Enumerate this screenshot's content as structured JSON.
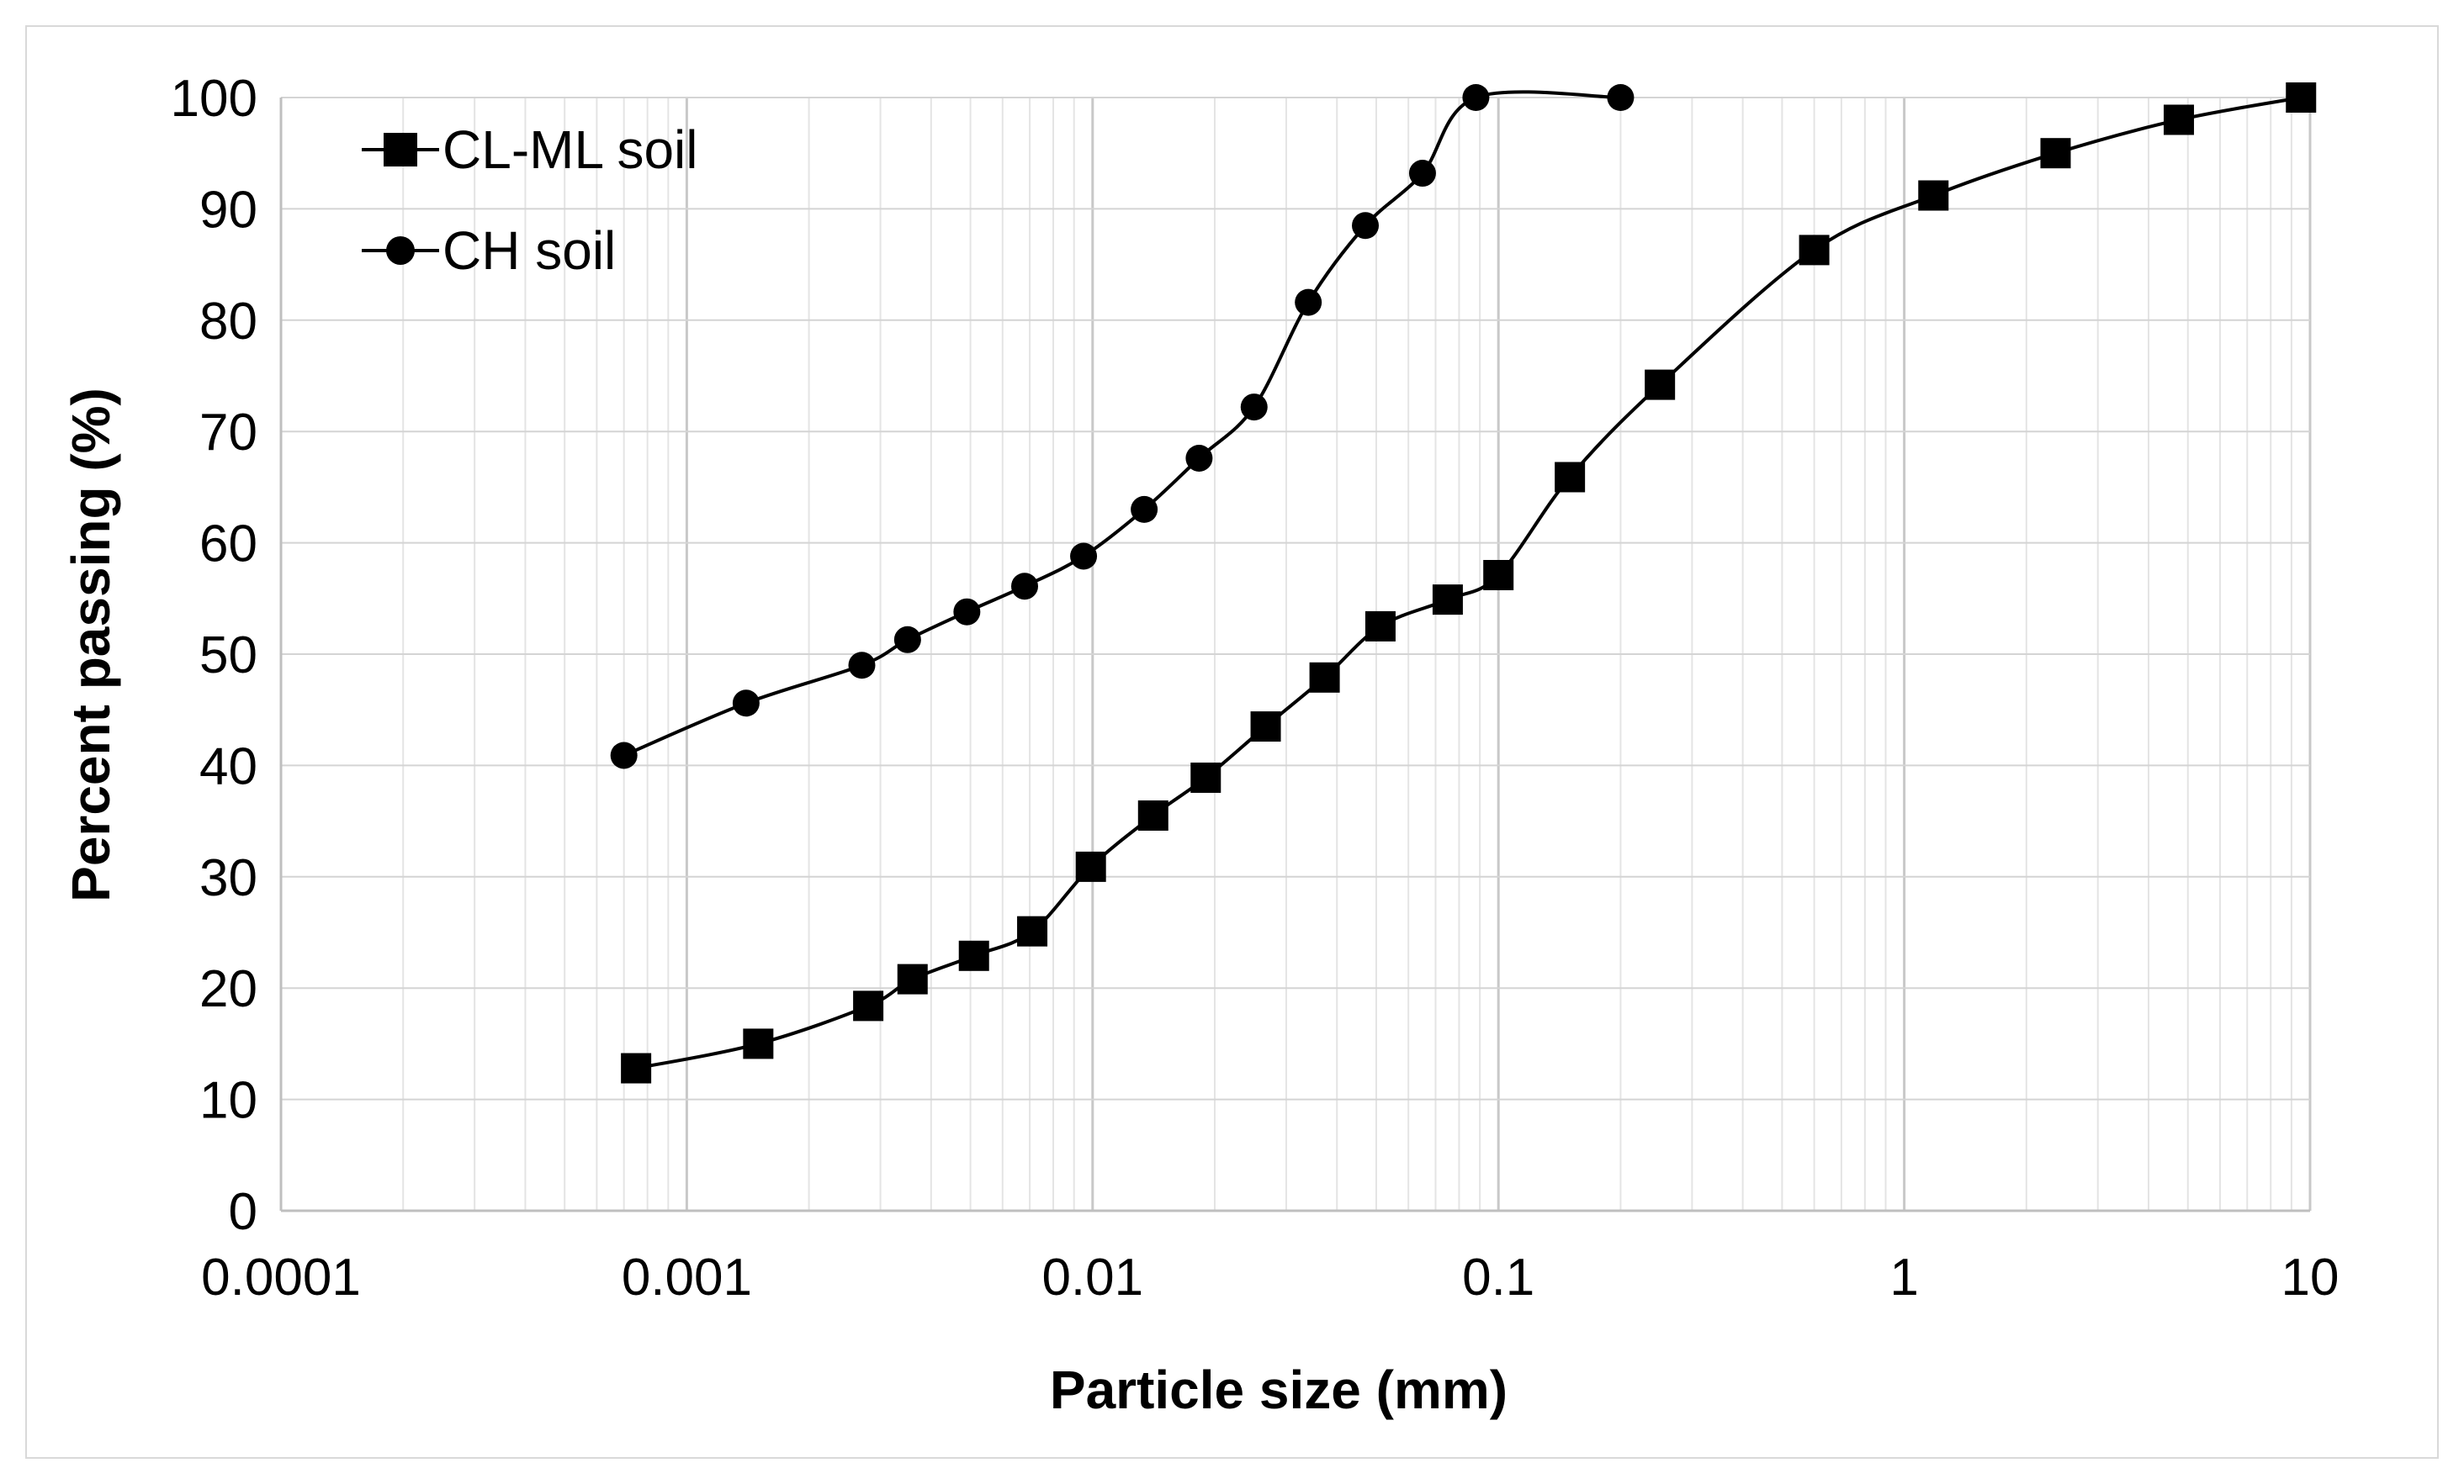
{
  "chart_data": {
    "type": "line",
    "title": "",
    "xlabel": "Particle size (mm)",
    "ylabel": "Percent passing (%)",
    "xscale": "log",
    "xlim": [
      0.0001,
      10
    ],
    "ylim": [
      0,
      100
    ],
    "x_tick_labels": [
      "0.0001",
      "0.001",
      "0.01",
      "0.1",
      "1",
      "10"
    ],
    "y_tick_labels": [
      "0",
      "10",
      "20",
      "30",
      "40",
      "50",
      "60",
      "70",
      "80",
      "90",
      "100"
    ],
    "grid": true,
    "legend_position": "top-left",
    "series": [
      {
        "name": "CL-ML soil",
        "marker": "square",
        "color": "#000000",
        "points": [
          [
            0.00075,
            12.8
          ],
          [
            0.0015,
            15.0
          ],
          [
            0.0028,
            18.4
          ],
          [
            0.0036,
            20.8
          ],
          [
            0.0051,
            22.9
          ],
          [
            0.0071,
            25.1
          ],
          [
            0.0099,
            30.9
          ],
          [
            0.0141,
            35.5
          ],
          [
            0.019,
            38.9
          ],
          [
            0.0267,
            43.5
          ],
          [
            0.0373,
            47.9
          ],
          [
            0.0512,
            52.5
          ],
          [
            0.075,
            54.9
          ],
          [
            0.1,
            57.1
          ],
          [
            0.15,
            65.9
          ],
          [
            0.25,
            74.2
          ],
          [
            0.6,
            86.3
          ],
          [
            1.18,
            91.2
          ],
          [
            2.36,
            95.0
          ],
          [
            4.75,
            98.0
          ],
          [
            9.5,
            100.0
          ]
        ]
      },
      {
        "name": "CH soil",
        "marker": "circle",
        "color": "#000000",
        "points": [
          [
            0.0007,
            40.9
          ],
          [
            0.0014,
            45.6
          ],
          [
            0.0027,
            49.0
          ],
          [
            0.0035,
            51.3
          ],
          [
            0.0049,
            53.8
          ],
          [
            0.0068,
            56.1
          ],
          [
            0.0095,
            58.8
          ],
          [
            0.0134,
            63.0
          ],
          [
            0.0183,
            67.6
          ],
          [
            0.025,
            72.2
          ],
          [
            0.034,
            81.6
          ],
          [
            0.047,
            88.5
          ],
          [
            0.065,
            93.2
          ],
          [
            0.088,
            100.0
          ],
          [
            0.2,
            100.0
          ]
        ]
      }
    ]
  }
}
